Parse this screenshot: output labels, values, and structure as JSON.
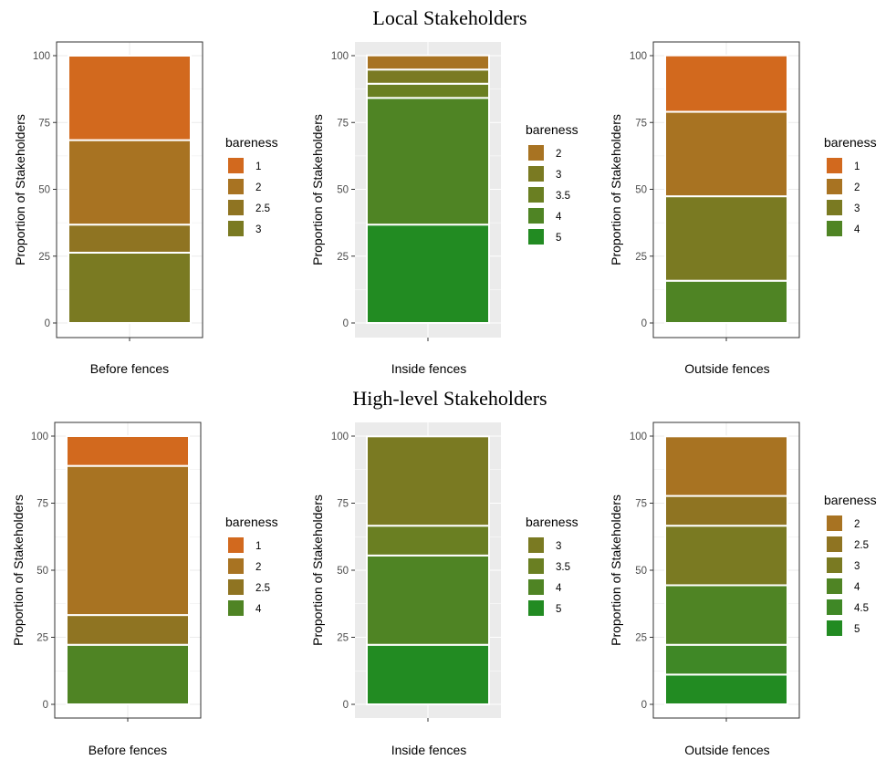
{
  "section_titles": [
    "Local Stakeholders",
    "High-level Stakeholders"
  ],
  "colors": {
    "1": "#d2691e",
    "2": "#a87322",
    "2.5": "#8f7422",
    "3": "#7a7a22",
    "3.5": "#6a7f22",
    "4": "#4f8424",
    "4.5": "#3f8826",
    "5": "#228b22"
  },
  "chart_data": [
    {
      "type": "bar",
      "stacked": true,
      "group": "Local Stakeholders",
      "categories": [
        "Before fences"
      ],
      "ylabel": "Proportion of Stakeholders",
      "ylim": [
        0,
        100
      ],
      "yticks": [
        "0",
        "25",
        "50",
        "75",
        "100"
      ],
      "background": "white",
      "legend": {
        "title": "bareness",
        "position": "right",
        "entries": [
          "1",
          "2",
          "2.5",
          "3"
        ]
      },
      "series": [
        {
          "name": "1",
          "values": [
            31.6
          ]
        },
        {
          "name": "2",
          "values": [
            31.6
          ]
        },
        {
          "name": "2.5",
          "values": [
            10.5
          ]
        },
        {
          "name": "3",
          "values": [
            26.3
          ]
        }
      ]
    },
    {
      "type": "bar",
      "stacked": true,
      "group": "Local Stakeholders",
      "categories": [
        "Inside fences"
      ],
      "ylabel": "Proportion of Stakeholders",
      "ylim": [
        0,
        100
      ],
      "yticks": [
        "0",
        "25",
        "50",
        "75",
        "100"
      ],
      "background": "grey",
      "legend": {
        "title": "bareness",
        "position": "right",
        "entries": [
          "2",
          "3",
          "3.5",
          "4",
          "5"
        ]
      },
      "series": [
        {
          "name": "2",
          "values": [
            5.3
          ]
        },
        {
          "name": "3",
          "values": [
            5.3
          ]
        },
        {
          "name": "3.5",
          "values": [
            5.3
          ]
        },
        {
          "name": "4",
          "values": [
            47.4
          ]
        },
        {
          "name": "5",
          "values": [
            36.8
          ]
        }
      ]
    },
    {
      "type": "bar",
      "stacked": true,
      "group": "Local Stakeholders",
      "categories": [
        "Outside fences"
      ],
      "ylabel": "Proportion of Stakeholders",
      "ylim": [
        0,
        100
      ],
      "yticks": [
        "0",
        "25",
        "50",
        "75",
        "100"
      ],
      "background": "white",
      "legend": {
        "title": "bareness",
        "position": "right",
        "entries": [
          "1",
          "2",
          "3",
          "4"
        ]
      },
      "series": [
        {
          "name": "1",
          "values": [
            21.1
          ]
        },
        {
          "name": "2",
          "values": [
            31.6
          ]
        },
        {
          "name": "3",
          "values": [
            31.6
          ]
        },
        {
          "name": "4",
          "values": [
            15.8
          ]
        }
      ]
    },
    {
      "type": "bar",
      "stacked": true,
      "group": "High-level Stakeholders",
      "categories": [
        "Before fences"
      ],
      "ylabel": "Proportion of Stakeholders",
      "ylim": [
        0,
        100
      ],
      "yticks": [
        "0",
        "25",
        "50",
        "75",
        "100"
      ],
      "background": "white",
      "legend": {
        "title": "bareness",
        "position": "right",
        "entries": [
          "1",
          "2",
          "2.5",
          "4"
        ]
      },
      "series": [
        {
          "name": "1",
          "values": [
            11.1
          ]
        },
        {
          "name": "2",
          "values": [
            55.6
          ]
        },
        {
          "name": "2.5",
          "values": [
            11.1
          ]
        },
        {
          "name": "4",
          "values": [
            22.2
          ]
        }
      ]
    },
    {
      "type": "bar",
      "stacked": true,
      "group": "High-level Stakeholders",
      "categories": [
        "Inside fences"
      ],
      "ylabel": "Proportion of Stakeholders",
      "ylim": [
        0,
        100
      ],
      "yticks": [
        "0",
        "25",
        "50",
        "75",
        "100"
      ],
      "background": "grey",
      "legend": {
        "title": "bareness",
        "position": "right",
        "entries": [
          "3",
          "3.5",
          "4",
          "5"
        ]
      },
      "series": [
        {
          "name": "3",
          "values": [
            33.3
          ]
        },
        {
          "name": "3.5",
          "values": [
            11.1
          ]
        },
        {
          "name": "4",
          "values": [
            33.3
          ]
        },
        {
          "name": "5",
          "values": [
            22.2
          ]
        }
      ]
    },
    {
      "type": "bar",
      "stacked": true,
      "group": "High-level Stakeholders",
      "categories": [
        "Outside fences"
      ],
      "ylabel": "Proportion of Stakeholders",
      "ylim": [
        0,
        100
      ],
      "yticks": [
        "0",
        "25",
        "50",
        "75",
        "100"
      ],
      "background": "white",
      "legend": {
        "title": "bareness",
        "position": "right",
        "entries": [
          "2",
          "2.5",
          "3",
          "4",
          "4.5",
          "5"
        ]
      },
      "series": [
        {
          "name": "2",
          "values": [
            22.2
          ]
        },
        {
          "name": "2.5",
          "values": [
            11.1
          ]
        },
        {
          "name": "3",
          "values": [
            22.2
          ]
        },
        {
          "name": "4",
          "values": [
            22.2
          ]
        },
        {
          "name": "4.5",
          "values": [
            11.1
          ]
        },
        {
          "name": "5",
          "values": [
            11.1
          ]
        }
      ]
    }
  ]
}
